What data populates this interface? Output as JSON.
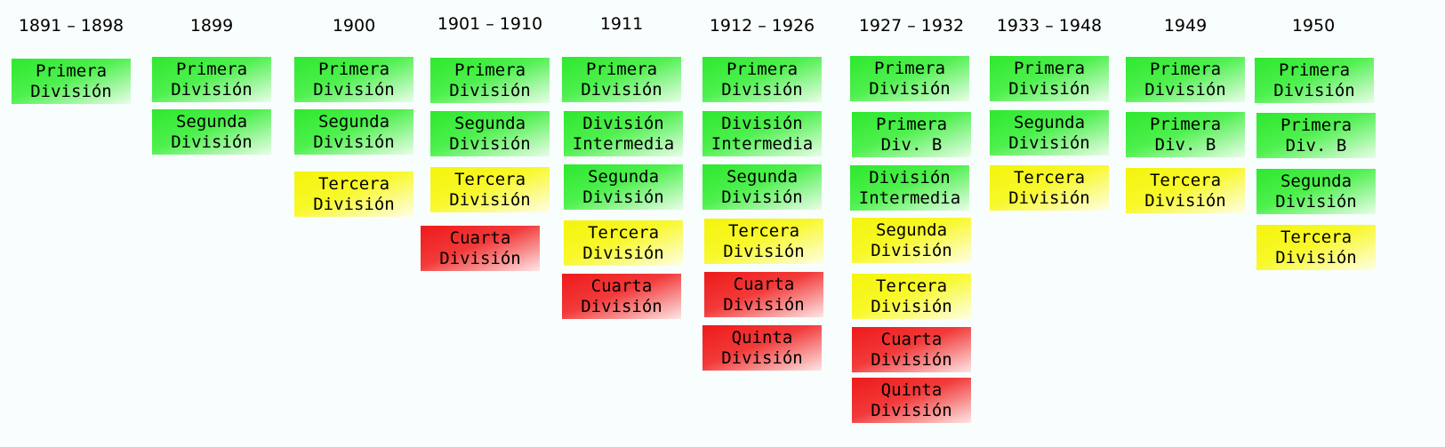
{
  "colors": {
    "green": "#2ee82e",
    "yellow": "#f4f40c",
    "red": "#ee1a1a",
    "background": "#f8fdfd"
  },
  "columns": [
    {
      "period": "1891 – 1898",
      "divisions": [
        {
          "label": "Primera\nDivisión",
          "color": "green"
        }
      ]
    },
    {
      "period": "1899",
      "divisions": [
        {
          "label": "Primera\nDivisión",
          "color": "green"
        },
        {
          "label": "Segunda\nDivisión",
          "color": "green"
        }
      ]
    },
    {
      "period": "1900",
      "divisions": [
        {
          "label": "Primera\nDivisión",
          "color": "green"
        },
        {
          "label": "Segunda\nDivisión",
          "color": "green"
        },
        {
          "label": "Tercera\nDivisión",
          "color": "yellow"
        }
      ]
    },
    {
      "period": "1901 – 1910",
      "divisions": [
        {
          "label": "Primera\nDivisión",
          "color": "green"
        },
        {
          "label": "Segunda\nDivisión",
          "color": "green"
        },
        {
          "label": "Tercera\nDivisión",
          "color": "yellow"
        },
        {
          "label": "Cuarta\nDivisión",
          "color": "red"
        }
      ]
    },
    {
      "period": "1911",
      "divisions": [
        {
          "label": "Primera\nDivisión",
          "color": "green"
        },
        {
          "label": "División\nIntermedia",
          "color": "green"
        },
        {
          "label": "Segunda\nDivisión",
          "color": "green"
        },
        {
          "label": "Tercera\nDivisión",
          "color": "yellow"
        },
        {
          "label": "Cuarta\nDivisión",
          "color": "red"
        }
      ]
    },
    {
      "period": "1912 – 1926",
      "divisions": [
        {
          "label": "Primera\nDivisión",
          "color": "green"
        },
        {
          "label": "División\nIntermedia",
          "color": "green"
        },
        {
          "label": "Segunda\nDivisión",
          "color": "green"
        },
        {
          "label": "Tercera\nDivisión",
          "color": "yellow"
        },
        {
          "label": "Cuarta\nDivisión",
          "color": "red"
        },
        {
          "label": "Quinta\nDivisión",
          "color": "red"
        }
      ]
    },
    {
      "period": "1927 – 1932",
      "divisions": [
        {
          "label": "Primera\nDivisión",
          "color": "green"
        },
        {
          "label": "Primera\nDiv. B",
          "color": "green"
        },
        {
          "label": "División\nIntermedia",
          "color": "green"
        },
        {
          "label": "Segunda\nDivisión",
          "color": "yellow"
        },
        {
          "label": "Tercera\nDivisión",
          "color": "yellow"
        },
        {
          "label": "Cuarta\nDivisión",
          "color": "red"
        },
        {
          "label": "Quinta\nDivisión",
          "color": "red"
        }
      ]
    },
    {
      "period": "1933 – 1948",
      "divisions": [
        {
          "label": "Primera\nDivisión",
          "color": "green"
        },
        {
          "label": "Segunda\nDivisión",
          "color": "green"
        },
        {
          "label": "Tercera\nDivisión",
          "color": "yellow"
        }
      ]
    },
    {
      "period": "1949",
      "divisions": [
        {
          "label": "Primera\nDivisión",
          "color": "green"
        },
        {
          "label": "Primera\nDiv. B",
          "color": "green"
        },
        {
          "label": "Tercera\nDivisión",
          "color": "yellow"
        }
      ]
    },
    {
      "period": "1950",
      "divisions": [
        {
          "label": "Primera\nDivisión",
          "color": "green"
        },
        {
          "label": "Primera\nDiv. B",
          "color": "green"
        },
        {
          "label": "Segunda\nDivisión",
          "color": "green"
        },
        {
          "label": "Tercera\nDivisión",
          "color": "yellow"
        }
      ]
    }
  ]
}
